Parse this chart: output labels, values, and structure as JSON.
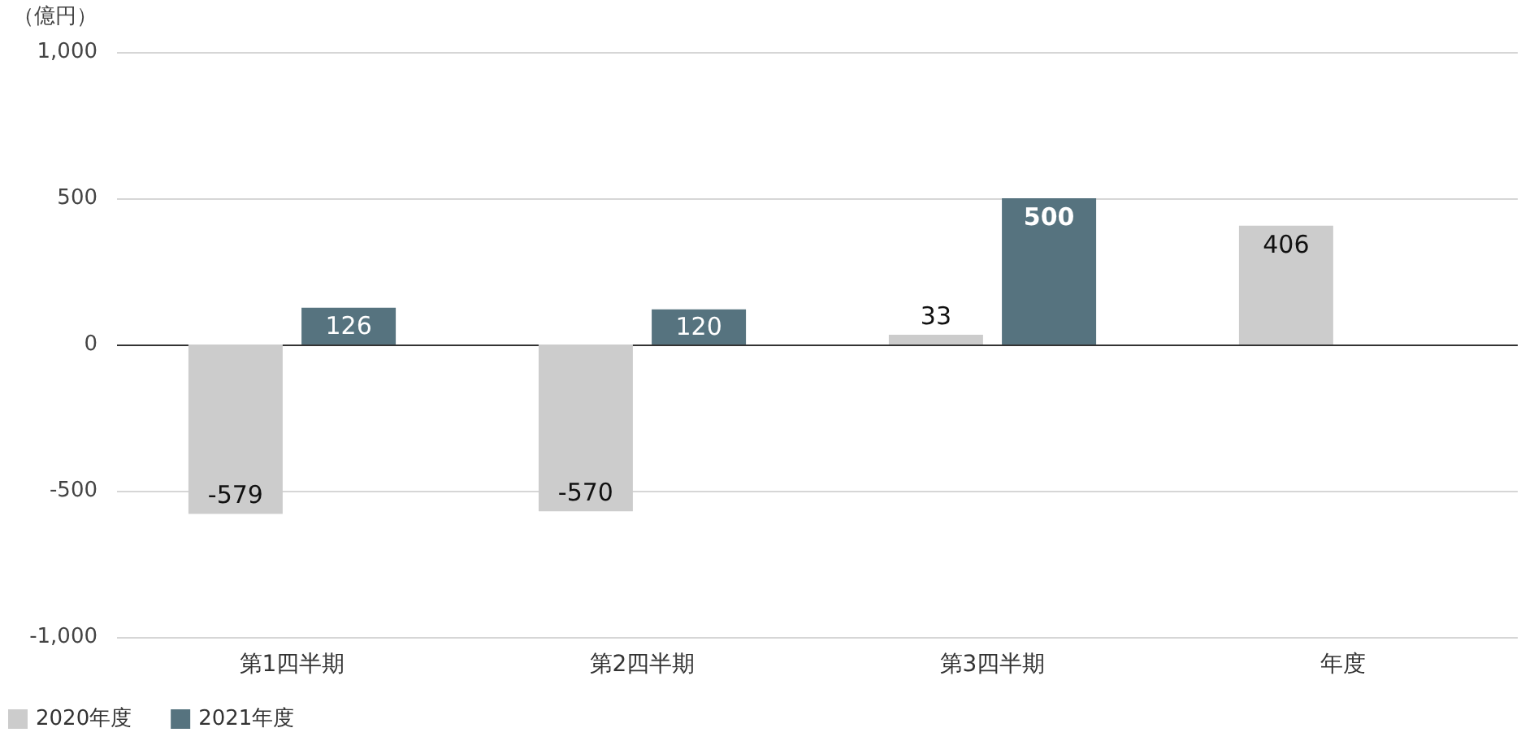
{
  "chart_data": {
    "type": "bar",
    "ylabel": "（億円）",
    "categories": [
      "第1四半期",
      "第2四半期",
      "第3四半期",
      "年度"
    ],
    "series": [
      {
        "name": "2020年度",
        "color": "#cccccc",
        "values": [
          -579,
          -570,
          33,
          406
        ]
      },
      {
        "name": "2021年度",
        "color": "#56737f",
        "values": [
          126,
          120,
          500,
          null
        ]
      }
    ],
    "ylim": [
      -1000,
      1000
    ],
    "yticks": [
      {
        "value": -1000,
        "label": "-1,000"
      },
      {
        "value": -500,
        "label": "-500"
      },
      0,
      500,
      {
        "value": 1000,
        "label": "1,000"
      }
    ],
    "grid": "y",
    "legend": "bottom left",
    "data_labels": true
  }
}
